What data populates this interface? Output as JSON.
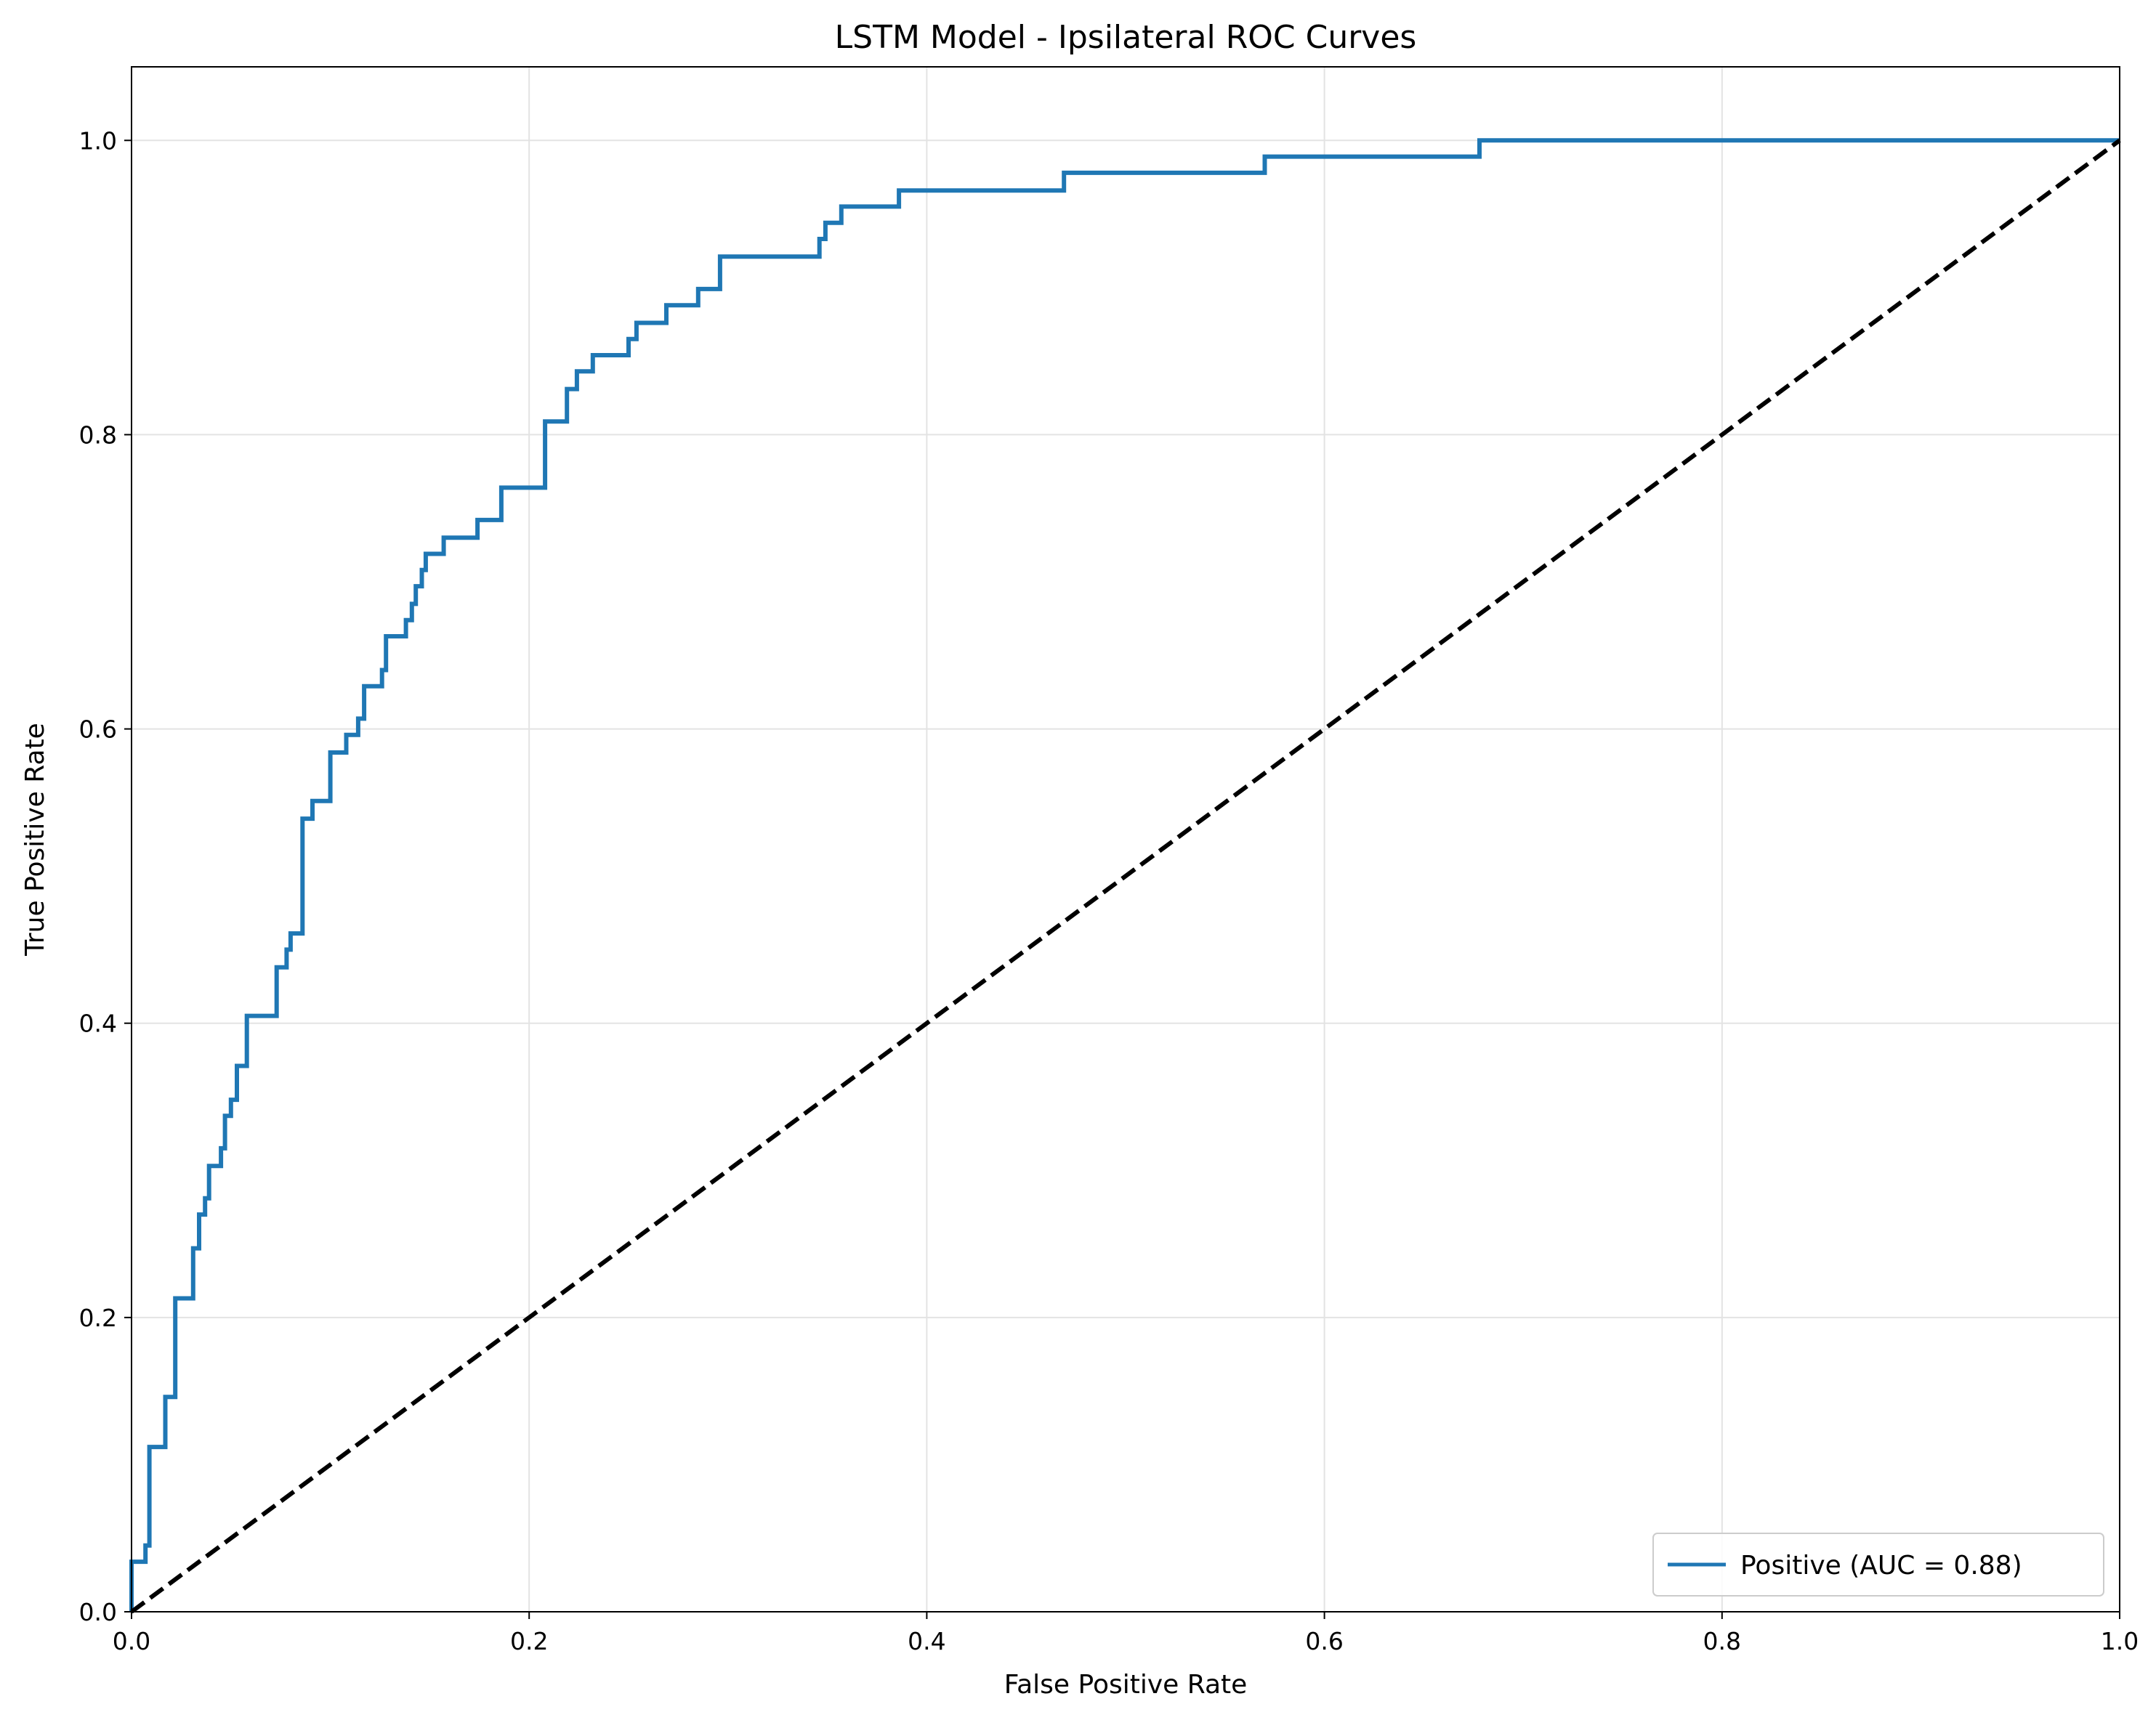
{
  "chart_data": {
    "type": "line",
    "title": "LSTM Model - Ipsilateral ROC Curves",
    "xlabel": "False Positive Rate",
    "ylabel": "True Positive Rate",
    "xlim": [
      0.0,
      1.0
    ],
    "ylim": [
      0.0,
      1.05
    ],
    "x_ticks": [
      "0.0",
      "0.2",
      "0.4",
      "0.6",
      "0.8",
      "1.0"
    ],
    "y_ticks": [
      "0.0",
      "0.2",
      "0.4",
      "0.6",
      "0.8",
      "1.0"
    ],
    "x_tick_values": [
      0.0,
      0.2,
      0.4,
      0.6,
      0.8,
      1.0
    ],
    "y_tick_values": [
      0.0,
      0.2,
      0.4,
      0.6,
      0.8,
      1.0
    ],
    "grid": true,
    "legend_position": "lower-right",
    "series": [
      {
        "name": "Positive (AUC = 0.88)",
        "color": "#1f77b4",
        "style": "solid",
        "step_points": [
          [
            0.0,
            0.0
          ],
          [
            0.0,
            0.034
          ],
          [
            0.007,
            0.034
          ],
          [
            0.007,
            0.045
          ],
          [
            0.009,
            0.045
          ],
          [
            0.009,
            0.112
          ],
          [
            0.017,
            0.112
          ],
          [
            0.017,
            0.146
          ],
          [
            0.022,
            0.146
          ],
          [
            0.022,
            0.213
          ],
          [
            0.031,
            0.213
          ],
          [
            0.031,
            0.247
          ],
          [
            0.034,
            0.247
          ],
          [
            0.034,
            0.27
          ],
          [
            0.037,
            0.27
          ],
          [
            0.037,
            0.281
          ],
          [
            0.039,
            0.281
          ],
          [
            0.039,
            0.303
          ],
          [
            0.045,
            0.303
          ],
          [
            0.045,
            0.315
          ],
          [
            0.047,
            0.315
          ],
          [
            0.047,
            0.337
          ],
          [
            0.05,
            0.337
          ],
          [
            0.05,
            0.348
          ],
          [
            0.053,
            0.348
          ],
          [
            0.053,
            0.371
          ],
          [
            0.058,
            0.371
          ],
          [
            0.058,
            0.405
          ],
          [
            0.073,
            0.405
          ],
          [
            0.073,
            0.438
          ],
          [
            0.078,
            0.438
          ],
          [
            0.078,
            0.45
          ],
          [
            0.08,
            0.45
          ],
          [
            0.08,
            0.461
          ],
          [
            0.086,
            0.461
          ],
          [
            0.086,
            0.539
          ],
          [
            0.091,
            0.539
          ],
          [
            0.091,
            0.551
          ],
          [
            0.1,
            0.551
          ],
          [
            0.1,
            0.584
          ],
          [
            0.108,
            0.584
          ],
          [
            0.108,
            0.596
          ],
          [
            0.114,
            0.596
          ],
          [
            0.114,
            0.607
          ],
          [
            0.117,
            0.607
          ],
          [
            0.117,
            0.629
          ],
          [
            0.126,
            0.629
          ],
          [
            0.126,
            0.64
          ],
          [
            0.128,
            0.64
          ],
          [
            0.128,
            0.663
          ],
          [
            0.138,
            0.663
          ],
          [
            0.138,
            0.674
          ],
          [
            0.141,
            0.674
          ],
          [
            0.141,
            0.685
          ],
          [
            0.143,
            0.685
          ],
          [
            0.143,
            0.697
          ],
          [
            0.146,
            0.697
          ],
          [
            0.146,
            0.708
          ],
          [
            0.148,
            0.708
          ],
          [
            0.148,
            0.719
          ],
          [
            0.157,
            0.719
          ],
          [
            0.157,
            0.73
          ],
          [
            0.174,
            0.73
          ],
          [
            0.174,
            0.742
          ],
          [
            0.186,
            0.742
          ],
          [
            0.186,
            0.764
          ],
          [
            0.208,
            0.764
          ],
          [
            0.208,
            0.809
          ],
          [
            0.219,
            0.809
          ],
          [
            0.219,
            0.831
          ],
          [
            0.224,
            0.831
          ],
          [
            0.224,
            0.843
          ],
          [
            0.232,
            0.843
          ],
          [
            0.232,
            0.854
          ],
          [
            0.25,
            0.854
          ],
          [
            0.25,
            0.865
          ],
          [
            0.254,
            0.865
          ],
          [
            0.254,
            0.876
          ],
          [
            0.269,
            0.876
          ],
          [
            0.269,
            0.888
          ],
          [
            0.285,
            0.888
          ],
          [
            0.285,
            0.899
          ],
          [
            0.296,
            0.899
          ],
          [
            0.296,
            0.921
          ],
          [
            0.346,
            0.921
          ],
          [
            0.346,
            0.933
          ],
          [
            0.349,
            0.933
          ],
          [
            0.349,
            0.944
          ],
          [
            0.357,
            0.944
          ],
          [
            0.357,
            0.955
          ],
          [
            0.386,
            0.955
          ],
          [
            0.386,
            0.966
          ],
          [
            0.469,
            0.966
          ],
          [
            0.469,
            0.978
          ],
          [
            0.57,
            0.978
          ],
          [
            0.57,
            0.989
          ],
          [
            0.678,
            0.989
          ],
          [
            0.678,
            1.0
          ],
          [
            1.0,
            1.0
          ]
        ]
      },
      {
        "name": "",
        "color": "#000000",
        "style": "dashed",
        "step_points": [
          [
            0.0,
            0.0
          ],
          [
            1.0,
            1.0
          ]
        ]
      }
    ]
  }
}
